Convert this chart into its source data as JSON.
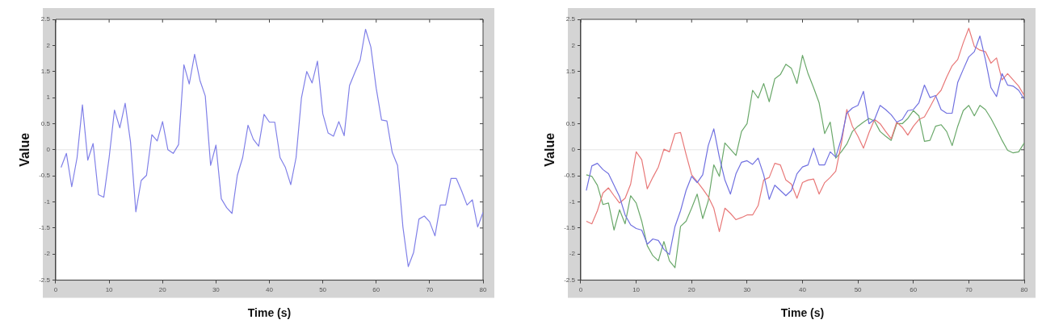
{
  "chart_data": [
    {
      "type": "line",
      "xlabel": "Time (s)",
      "ylabel": "Value",
      "xlim": [
        0,
        80
      ],
      "xticks": [
        0,
        10,
        20,
        30,
        40,
        50,
        60,
        70,
        80
      ],
      "ylim": [
        -2.5,
        2.5
      ],
      "yticks": [
        -2.5,
        -2,
        -1.5,
        -1,
        -0.5,
        0,
        0.5,
        1,
        1.5,
        2,
        2.5
      ],
      "grid": false,
      "line_style": "solid",
      "ref_lines": [
        {
          "axis": "y",
          "value": 0,
          "color": "#e4e4e4"
        }
      ],
      "x": [
        1,
        2,
        3,
        4,
        5,
        6,
        7,
        8,
        9,
        10,
        11,
        12,
        13,
        14,
        15,
        16,
        17,
        18,
        19,
        20,
        21,
        22,
        23,
        24,
        25,
        26,
        27,
        28,
        29,
        30,
        31,
        32,
        33,
        34,
        35,
        36,
        37,
        38,
        39,
        40,
        41,
        42,
        43,
        44,
        45,
        46,
        47,
        48,
        49,
        50,
        51,
        52,
        53,
        54,
        55,
        56,
        57,
        58,
        59,
        60,
        61,
        62,
        63,
        64,
        65,
        66,
        67,
        68,
        69,
        70,
        71,
        72,
        73,
        74,
        75,
        76,
        77,
        78,
        79,
        80
      ],
      "series": [
        {
          "color": "#8080e8",
          "values": [
            -0.34,
            -0.07,
            -0.71,
            -0.15,
            0.86,
            -0.2,
            0.12,
            -0.86,
            -0.91,
            -0.15,
            0.76,
            0.42,
            0.89,
            0.15,
            -1.19,
            -0.59,
            -0.49,
            0.29,
            0.17,
            0.54,
            0,
            -0.07,
            0.1,
            1.63,
            1.26,
            1.83,
            1.33,
            1.03,
            -0.3,
            0.09,
            -0.94,
            -1.11,
            -1.22,
            -0.49,
            -0.15,
            0.47,
            0.2,
            0.07,
            0.68,
            0.53,
            0.53,
            -0.15,
            -0.34,
            -0.67,
            -0.15,
            0.99,
            1.5,
            1.28,
            1.7,
            0.69,
            0.32,
            0.26,
            0.54,
            0.27,
            1.23,
            1.48,
            1.72,
            2.31,
            1.97,
            1.18,
            0.57,
            0.55,
            -0.05,
            -0.3,
            -1.48,
            -2.24,
            -1.97,
            -1.33,
            -1.27,
            -1.38,
            -1.65,
            -1.06,
            -1.06,
            -0.55,
            -0.55,
            -0.79,
            -1.06,
            -0.96,
            -1.48,
            -1.2
          ]
        }
      ]
    },
    {
      "type": "line",
      "xlabel": "Time (s)",
      "ylabel": "Value",
      "xlim": [
        0,
        80
      ],
      "xticks": [
        0,
        10,
        20,
        30,
        40,
        50,
        60,
        70,
        80
      ],
      "ylim": [
        -2.5,
        2.5
      ],
      "yticks": [
        -2.5,
        -2,
        -1.5,
        -1,
        -0.5,
        0,
        0.5,
        {
          "value": 1,
          "label": null
        },
        1.5,
        2,
        2.5
      ],
      "grid": false,
      "line_style": "solid",
      "ref_lines": [
        {
          "axis": "y",
          "value": 0,
          "color": "#e4e4e4"
        }
      ],
      "x": [
        1,
        2,
        3,
        4,
        5,
        6,
        7,
        8,
        9,
        10,
        11,
        12,
        13,
        14,
        15,
        16,
        17,
        18,
        19,
        20,
        21,
        22,
        23,
        24,
        25,
        26,
        27,
        28,
        29,
        30,
        31,
        32,
        33,
        34,
        35,
        36,
        37,
        38,
        39,
        40,
        41,
        42,
        43,
        44,
        45,
        46,
        47,
        48,
        49,
        50,
        51,
        52,
        53,
        54,
        55,
        56,
        57,
        58,
        59,
        60,
        61,
        62,
        63,
        64,
        65,
        66,
        67,
        68,
        69,
        70,
        71,
        72,
        73,
        74,
        75,
        76,
        77,
        78,
        79,
        80
      ],
      "series": [
        {
          "color": "#7070e0",
          "values": [
            -0.78,
            -0.31,
            -0.26,
            -0.38,
            -0.46,
            -0.68,
            -0.9,
            -1.25,
            -1.44,
            -1.51,
            -1.54,
            -1.81,
            -1.71,
            -1.74,
            -1.91,
            -2.01,
            -1.47,
            -1.17,
            -0.78,
            -0.51,
            -0.63,
            -0.48,
            0.08,
            0.4,
            -0.14,
            -0.58,
            -0.85,
            -0.46,
            -0.24,
            -0.21,
            -0.28,
            -0.16,
            -0.48,
            -0.95,
            -0.68,
            -0.78,
            -0.88,
            -0.78,
            -0.46,
            -0.33,
            -0.29,
            0.03,
            -0.29,
            -0.29,
            -0.04,
            -0.14,
            0.21,
            0.7,
            0.8,
            0.85,
            1.12,
            0.5,
            0.58,
            0.85,
            0.77,
            0.67,
            0.53,
            0.58,
            0.75,
            0.77,
            0.9,
            1.24,
            1,
            1.04,
            0.77,
            0.7,
            0.7,
            1.29,
            1.54,
            1.78,
            1.88,
            2.18,
            1.73,
            1.19,
            1.02,
            1.46,
            1.24,
            1.22,
            1.14,
            0.97
          ]
        },
        {
          "color": "#e87878",
          "values": [
            -1.37,
            -1.42,
            -1.17,
            -0.83,
            -0.73,
            -0.88,
            -1.02,
            -0.93,
            -0.66,
            -0.04,
            -0.19,
            -0.75,
            -0.53,
            -0.33,
            0.01,
            -0.04,
            0.31,
            0.33,
            -0.09,
            -0.48,
            -0.61,
            -0.75,
            -0.9,
            -1.12,
            -1.57,
            -1.12,
            -1.22,
            -1.34,
            -1.3,
            -1.25,
            -1.25,
            -1.07,
            -0.58,
            -0.53,
            -0.26,
            -0.29,
            -0.58,
            -0.66,
            -0.93,
            -0.63,
            -0.58,
            -0.56,
            -0.85,
            -0.63,
            -0.53,
            -0.41,
            0.11,
            0.77,
            0.45,
            0.26,
            0.03,
            0.33,
            0.58,
            0.5,
            0.35,
            0.21,
            0.53,
            0.43,
            0.28,
            0.45,
            0.58,
            0.63,
            0.82,
            1.02,
            1.14,
            1.39,
            1.61,
            1.73,
            2.05,
            2.33,
            1.98,
            1.91,
            1.88,
            1.66,
            1.76,
            1.34,
            1.46,
            1.34,
            1.22,
            1.04
          ]
        },
        {
          "color": "#6aa86a",
          "values": [
            -0.48,
            -0.51,
            -0.68,
            -1.05,
            -1.02,
            -1.54,
            -1.15,
            -1.42,
            -0.88,
            -1.02,
            -1.37,
            -1.84,
            -2.03,
            -2.13,
            -1.76,
            -2.13,
            -2.26,
            -1.47,
            -1.37,
            -1.12,
            -0.85,
            -1.32,
            -0.98,
            -0.29,
            -0.51,
            0.13,
            0.01,
            -0.11,
            0.35,
            0.5,
            1.14,
            0.99,
            1.27,
            0.92,
            1.36,
            1.44,
            1.64,
            1.56,
            1.27,
            1.81,
            1.46,
            1.19,
            0.9,
            0.31,
            0.53,
            -0.16,
            -0.04,
            0.11,
            0.35,
            0.45,
            0.53,
            0.6,
            0.55,
            0.35,
            0.26,
            0.18,
            0.5,
            0.5,
            0.6,
            0.75,
            0.65,
            0.16,
            0.18,
            0.45,
            0.48,
            0.35,
            0.08,
            0.45,
            0.75,
            0.85,
            0.65,
            0.85,
            0.77,
            0.6,
            0.4,
            0.18,
            -0.01,
            -0.06,
            -0.04,
            0.13
          ]
        }
      ]
    }
  ]
}
